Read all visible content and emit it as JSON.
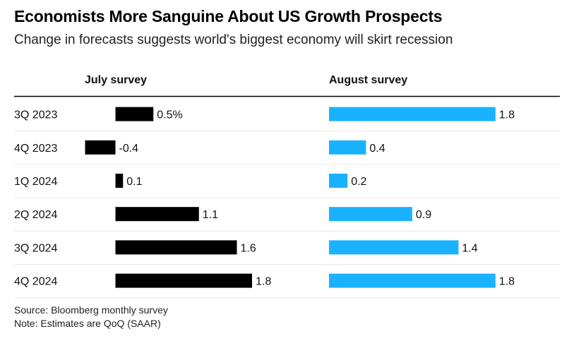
{
  "title": "Economists More Sanguine About US Growth Prospects",
  "subtitle": "Change in forecasts suggests world's biggest economy will skirt recession",
  "source": "Source: Bloomberg monthly survey",
  "note": "Note: Estimates are QoQ (SAAR)",
  "colors": {
    "july": "#000000",
    "august": "#1ab2ff",
    "rule": "#000000",
    "row_sep": "#e6e6e6"
  },
  "chart_data": {
    "type": "bar",
    "orientation": "horizontal",
    "categories": [
      "3Q 2023",
      "4Q 2023",
      "1Q 2024",
      "2Q 2024",
      "3Q 2024",
      "4Q 2024"
    ],
    "series": [
      {
        "name": "July survey",
        "values": [
          0.5,
          -0.4,
          0.1,
          1.1,
          1.6,
          1.8
        ],
        "labels": [
          "0.5%",
          "-0.4",
          "0.1",
          "1.1",
          "1.6",
          "1.8"
        ]
      },
      {
        "name": "August survey",
        "values": [
          1.8,
          0.4,
          0.2,
          0.9,
          1.4,
          1.8
        ],
        "labels": [
          "1.8",
          "0.4",
          "0.2",
          "0.9",
          "1.4",
          "1.8"
        ]
      }
    ],
    "xlim": [
      -0.4,
      1.8
    ],
    "legend": "panel headers"
  }
}
